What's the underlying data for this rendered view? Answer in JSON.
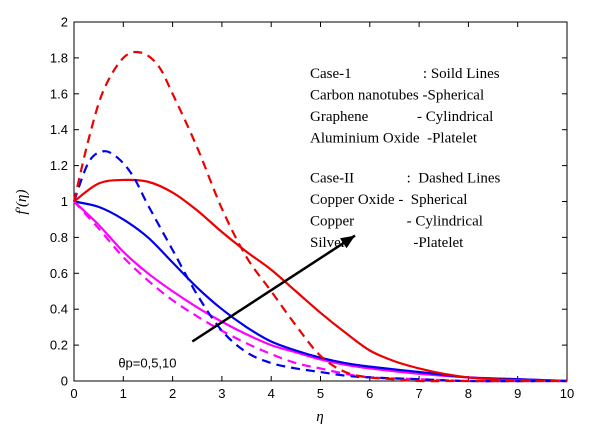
{
  "chart_data": {
    "type": "line",
    "xlabel": "η",
    "ylabel": "f′(η)",
    "xlim": [
      0,
      10
    ],
    "ylim": [
      0,
      2
    ],
    "x_ticks": [
      "0",
      "1",
      "2",
      "3",
      "4",
      "5",
      "6",
      "7",
      "8",
      "9",
      "10"
    ],
    "y_ticks": [
      "0",
      "0.2",
      "0.4",
      "0.6",
      "0.8",
      "1",
      "1.2",
      "1.4",
      "1.6",
      "1.8",
      "2"
    ],
    "grid": false,
    "legend_placement": "top-right",
    "legend_lines": [
      "Case-1                   : Soild Lines",
      "Carbon nanotubes -Spherical",
      "Graphene             - Cylindrical",
      "Aluminium Oxide  -Platelet",
      "",
      "Case-II              :  Dashed Lines",
      "Copper Oxide -  Spherical",
      "Copper              - Cylindrical",
      "Silver                  -Platelet"
    ],
    "annotation": {
      "text": "θp=0,5,10",
      "arrow_from": [
        2.4,
        0.22
      ],
      "arrow_to": [
        5.7,
        0.81
      ]
    },
    "colors": {
      "magenta": "#ff00ff",
      "blue": "#0000ee",
      "red": "#ee0000",
      "arrow": "#000000"
    },
    "series": [
      {
        "color": "#ff00ff",
        "dash": false,
        "x": [
          0,
          0.5,
          1,
          1.5,
          2,
          2.5,
          3,
          3.5,
          4,
          4.5,
          5,
          5.5,
          6,
          7,
          8,
          9,
          10
        ],
        "y": [
          1,
          0.87,
          0.72,
          0.6,
          0.5,
          0.41,
          0.33,
          0.26,
          0.2,
          0.16,
          0.12,
          0.09,
          0.07,
          0.04,
          0.02,
          0.01,
          0.0
        ]
      },
      {
        "color": "#0000ee",
        "dash": false,
        "x": [
          0,
          0.5,
          1,
          1.5,
          2,
          2.5,
          3,
          3.5,
          4,
          4.5,
          5,
          5.5,
          6,
          7,
          8,
          9,
          10
        ],
        "y": [
          1,
          0.97,
          0.9,
          0.8,
          0.66,
          0.52,
          0.4,
          0.3,
          0.22,
          0.17,
          0.13,
          0.1,
          0.08,
          0.05,
          0.02,
          0.01,
          0.0
        ]
      },
      {
        "color": "#ee0000",
        "dash": false,
        "x": [
          0,
          0.5,
          1,
          1.5,
          2,
          2.5,
          3,
          3.5,
          4,
          4.5,
          5,
          5.5,
          6,
          6.5,
          7,
          7.5,
          8,
          8.5,
          9,
          10
        ],
        "y": [
          1,
          1.1,
          1.12,
          1.11,
          1.05,
          0.95,
          0.83,
          0.72,
          0.62,
          0.5,
          0.38,
          0.27,
          0.17,
          0.11,
          0.07,
          0.04,
          0.02,
          0.01,
          0.005,
          0.0
        ]
      },
      {
        "color": "#ff00ff",
        "dash": true,
        "x": [
          0,
          0.5,
          1,
          1.5,
          2,
          2.5,
          3,
          3.5,
          4,
          4.5,
          5,
          5.5,
          6,
          7,
          8,
          9,
          10
        ],
        "y": [
          1,
          0.85,
          0.69,
          0.56,
          0.45,
          0.36,
          0.28,
          0.21,
          0.15,
          0.1,
          0.07,
          0.04,
          0.02,
          0.01,
          0.0,
          0.0,
          0.0
        ]
      },
      {
        "color": "#0000ee",
        "dash": true,
        "x": [
          0,
          0.3,
          0.6,
          0.9,
          1.2,
          1.5,
          2,
          2.5,
          3,
          3.5,
          4,
          4.5,
          5,
          5.5,
          6,
          7,
          8,
          10
        ],
        "y": [
          1,
          1.22,
          1.28,
          1.24,
          1.14,
          0.98,
          0.73,
          0.48,
          0.28,
          0.16,
          0.1,
          0.07,
          0.05,
          0.03,
          0.02,
          0.01,
          0.0,
          0.0
        ]
      },
      {
        "color": "#ee0000",
        "dash": true,
        "x": [
          0,
          0.3,
          0.6,
          1,
          1.35,
          1.7,
          2,
          2.5,
          3,
          3.5,
          4,
          4.5,
          5,
          5.5,
          6,
          6.5,
          7,
          8,
          10
        ],
        "y": [
          1,
          1.35,
          1.62,
          1.8,
          1.83,
          1.76,
          1.6,
          1.3,
          0.96,
          0.69,
          0.5,
          0.31,
          0.14,
          0.05,
          0.02,
          0.01,
          0.0,
          0.0,
          0.0
        ]
      }
    ]
  }
}
